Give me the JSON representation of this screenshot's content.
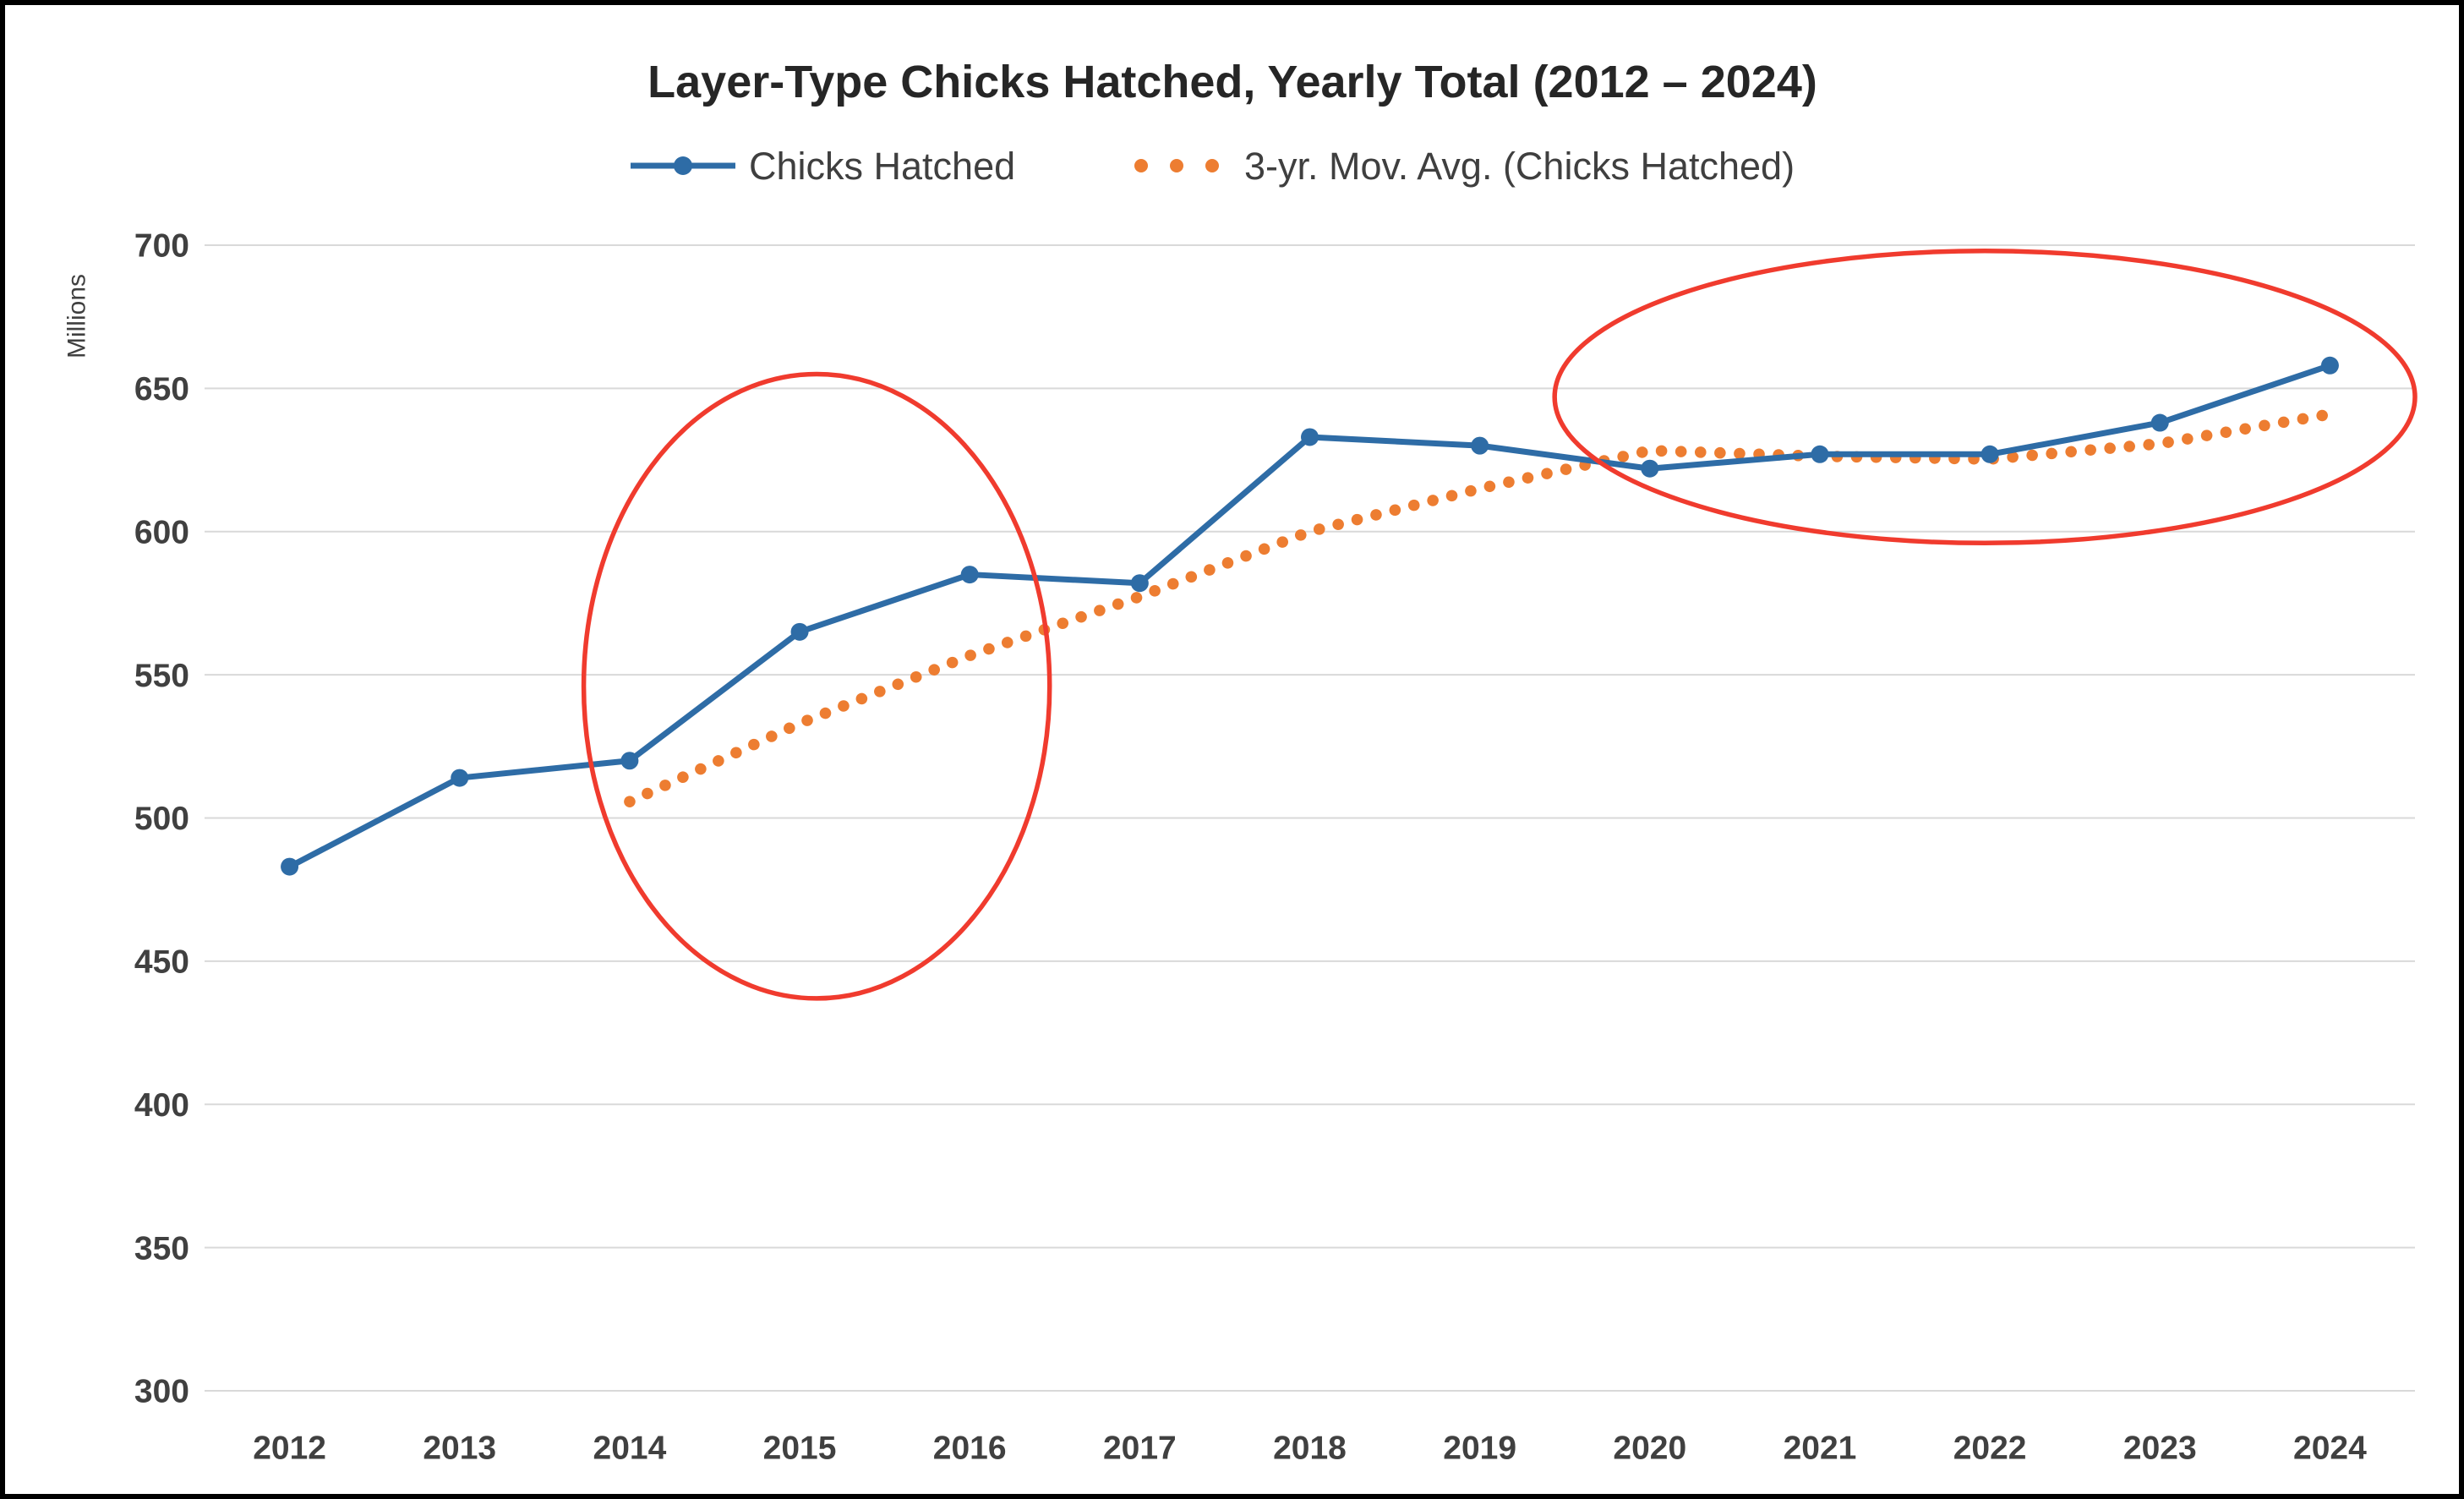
{
  "chart_data": {
    "type": "line",
    "title": "Layer-Type Chicks Hatched, Yearly Total (2012 – 2024)",
    "ylabel": "Millions",
    "xlabel": "",
    "categories": [
      2012,
      2013,
      2014,
      2015,
      2016,
      2017,
      2018,
      2019,
      2020,
      2021,
      2022,
      2023,
      2024
    ],
    "y_axis": {
      "min": 300,
      "max": 700,
      "step": 50
    },
    "grid": true,
    "legend_position": "top",
    "series": [
      {
        "name": "Chicks Hatched",
        "style": "solid-line-with-markers",
        "color": "#2E6CA6",
        "values": [
          483,
          514,
          520,
          565,
          585,
          582,
          633,
          630,
          622,
          627,
          627,
          638,
          658
        ]
      },
      {
        "name": "3-yr. Mov. Avg. (Chicks Hatched)",
        "style": "dotted-line",
        "color": "#ED7D31",
        "values": [
          null,
          null,
          505.7,
          533.0,
          556.7,
          577.3,
          600.0,
          615.0,
          628.3,
          626.3,
          625.3,
          630.7,
          641.0
        ]
      }
    ],
    "annotations": [
      {
        "shape": "ellipse",
        "color": "#F03B2E",
        "x_center_year": 2015.1,
        "x_radius_years": 1.37,
        "y_center": 546,
        "y_radius": 109
      },
      {
        "shape": "ellipse",
        "color": "#F03B2E",
        "x_center_year": 2021.97,
        "x_radius_years": 2.53,
        "y_center": 647,
        "y_radius": 51
      }
    ],
    "colors": {
      "grid": "#D9D9D9",
      "axis_text": "#404040",
      "title_text": "#262626"
    }
  }
}
